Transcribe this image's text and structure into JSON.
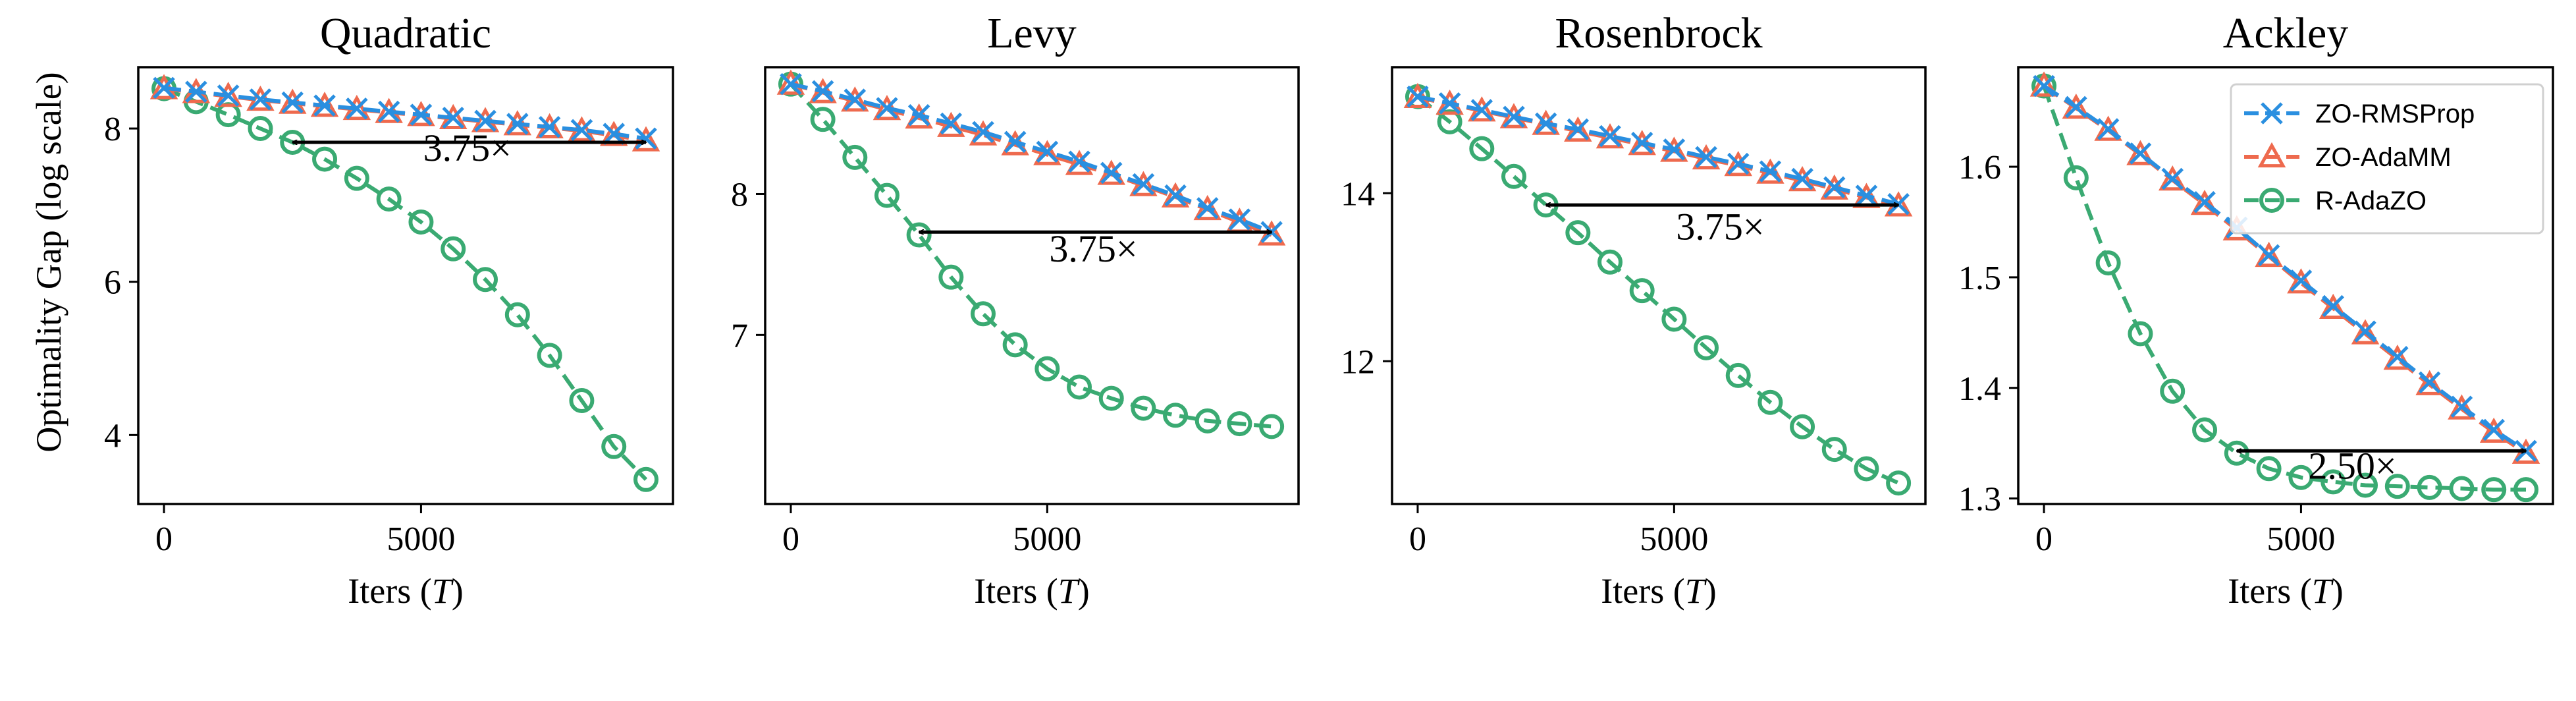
{
  "colors": {
    "zo_rmsprop": "#2a8fe0",
    "zo_adamm": "#ee6a4e",
    "r_adazo": "#3aaa72",
    "axis": "#000000",
    "annotation_arrow": "#000000"
  },
  "figure": {
    "ylabel": "Optimality Gap (log scale)",
    "xlabel_text": "Iters (",
    "xlabel_var": "T",
    "xlabel_close": ")"
  },
  "legend": {
    "placement": "top-right of last panel",
    "entries": [
      {
        "label": "ZO-RMSProp",
        "marker": "x",
        "color": "#2a8fe0"
      },
      {
        "label": "ZO-AdaMM",
        "marker": "triangle",
        "color": "#ee6a4e"
      },
      {
        "label": "R-AdaZO",
        "marker": "circle",
        "color": "#3aaa72"
      }
    ]
  },
  "chart_data": [
    {
      "type": "line",
      "title": "Quadratic",
      "xlabel": "Iters (T)",
      "ylabel": "Optimality Gap (log scale)",
      "xlim": [
        -500,
        9900
      ],
      "ylim": [
        3.1,
        8.8
      ],
      "xticks": [
        0,
        5000
      ],
      "yticks": [
        4,
        6,
        8
      ],
      "grid": false,
      "x": [
        0,
        625,
        1250,
        1875,
        2500,
        3125,
        3750,
        4375,
        5000,
        5625,
        6250,
        6875,
        7500,
        8125,
        8750,
        9375
      ],
      "series": [
        {
          "name": "ZO-RMSProp",
          "values": [
            8.53,
            8.48,
            8.43,
            8.38,
            8.34,
            8.3,
            8.26,
            8.22,
            8.18,
            8.14,
            8.1,
            8.06,
            8.02,
            7.98,
            7.93,
            7.87
          ]
        },
        {
          "name": "ZO-AdaMM",
          "values": [
            8.52,
            8.47,
            8.42,
            8.37,
            8.33,
            8.29,
            8.25,
            8.21,
            8.17,
            8.13,
            8.09,
            8.05,
            8.01,
            7.97,
            7.91,
            7.84
          ]
        },
        {
          "name": "R-AdaZO",
          "values": [
            8.52,
            8.35,
            8.18,
            8.0,
            7.82,
            7.6,
            7.35,
            7.08,
            6.78,
            6.43,
            6.03,
            5.57,
            5.04,
            4.45,
            3.85,
            3.42
          ]
        }
      ],
      "annotation": {
        "text": "3.75×",
        "x_from": 2500,
        "x_to": 9375,
        "y": 7.82,
        "text_x": 5900,
        "text_y": 7.58
      }
    },
    {
      "type": "line",
      "title": "Levy",
      "xlabel": "Iters (T)",
      "ylabel": "",
      "xlim": [
        -500,
        9900
      ],
      "ylim": [
        5.8,
        8.9
      ],
      "xticks": [
        0,
        5000
      ],
      "yticks": [
        7,
        8
      ],
      "grid": false,
      "x": [
        0,
        625,
        1250,
        1875,
        2500,
        3125,
        3750,
        4375,
        5000,
        5625,
        6250,
        6875,
        7500,
        8125,
        8750,
        9375
      ],
      "series": [
        {
          "name": "ZO-RMSProp",
          "values": [
            8.78,
            8.73,
            8.67,
            8.61,
            8.56,
            8.5,
            8.44,
            8.37,
            8.3,
            8.23,
            8.15,
            8.07,
            7.99,
            7.9,
            7.82,
            7.73
          ]
        },
        {
          "name": "ZO-AdaMM",
          "values": [
            8.78,
            8.72,
            8.66,
            8.6,
            8.54,
            8.48,
            8.42,
            8.35,
            8.28,
            8.21,
            8.14,
            8.06,
            7.98,
            7.89,
            7.8,
            7.71
          ]
        },
        {
          "name": "R-AdaZO",
          "values": [
            8.78,
            8.53,
            8.26,
            7.99,
            7.71,
            7.41,
            7.15,
            6.93,
            6.76,
            6.63,
            6.55,
            6.48,
            6.43,
            6.39,
            6.37,
            6.35
          ]
        }
      ],
      "annotation": {
        "text": "3.75×",
        "x_from": 2500,
        "x_to": 9375,
        "y": 7.73,
        "text_x": 5900,
        "text_y": 7.52
      }
    },
    {
      "type": "line",
      "title": "Rosenbrock",
      "xlabel": "Iters (T)",
      "ylabel": "",
      "xlim": [
        -500,
        9900
      ],
      "ylim": [
        10.3,
        15.5
      ],
      "xticks": [
        0,
        5000
      ],
      "yticks": [
        12,
        14
      ],
      "grid": false,
      "x": [
        0,
        625,
        1250,
        1875,
        2500,
        3125,
        3750,
        4375,
        5000,
        5625,
        6250,
        6875,
        7500,
        8125,
        8750,
        9375
      ],
      "series": [
        {
          "name": "ZO-RMSProp",
          "values": [
            15.15,
            15.07,
            14.99,
            14.91,
            14.83,
            14.76,
            14.68,
            14.6,
            14.52,
            14.43,
            14.35,
            14.26,
            14.17,
            14.07,
            13.97,
            13.87
          ]
        },
        {
          "name": "ZO-AdaMM",
          "values": [
            15.14,
            15.06,
            14.98,
            14.9,
            14.82,
            14.74,
            14.66,
            14.58,
            14.5,
            14.41,
            14.33,
            14.24,
            14.15,
            14.05,
            13.95,
            13.85
          ]
        },
        {
          "name": "R-AdaZO",
          "values": [
            15.15,
            14.85,
            14.53,
            14.2,
            13.86,
            13.53,
            13.18,
            12.84,
            12.5,
            12.16,
            11.83,
            11.51,
            11.22,
            10.95,
            10.72,
            10.55
          ]
        }
      ],
      "annotation": {
        "text": "3.75×",
        "x_from": 2500,
        "x_to": 9375,
        "y": 13.86,
        "text_x": 5900,
        "text_y": 13.45
      }
    },
    {
      "type": "line",
      "title": "Ackley",
      "xlabel": "Iters (T)",
      "ylabel": "",
      "xlim": [
        -500,
        9900
      ],
      "ylim": [
        1.295,
        1.69
      ],
      "xticks": [
        0,
        5000
      ],
      "yticks": [
        1.3,
        1.4,
        1.5,
        1.6
      ],
      "grid": false,
      "x": [
        0,
        625,
        1250,
        1875,
        2500,
        3125,
        3750,
        4375,
        5000,
        5625,
        6250,
        6875,
        7500,
        8125,
        8750,
        9375
      ],
      "series": [
        {
          "name": "ZO-RMSProp",
          "values": [
            1.673,
            1.654,
            1.634,
            1.612,
            1.589,
            1.568,
            1.545,
            1.52,
            1.497,
            1.474,
            1.451,
            1.428,
            1.405,
            1.383,
            1.362,
            1.343
          ]
        },
        {
          "name": "ZO-AdaMM",
          "values": [
            1.673,
            1.653,
            1.633,
            1.611,
            1.588,
            1.566,
            1.543,
            1.519,
            1.495,
            1.472,
            1.449,
            1.426,
            1.403,
            1.381,
            1.36,
            1.341
          ]
        },
        {
          "name": "R-AdaZO",
          "values": [
            1.673,
            1.59,
            1.513,
            1.449,
            1.397,
            1.362,
            1.341,
            1.327,
            1.319,
            1.315,
            1.312,
            1.311,
            1.31,
            1.309,
            1.308,
            1.308
          ]
        }
      ],
      "annotation": {
        "text": "2.50×",
        "x_from": 3750,
        "x_to": 9375,
        "y": 1.343,
        "text_x": 6000,
        "text_y": 1.318
      }
    }
  ]
}
